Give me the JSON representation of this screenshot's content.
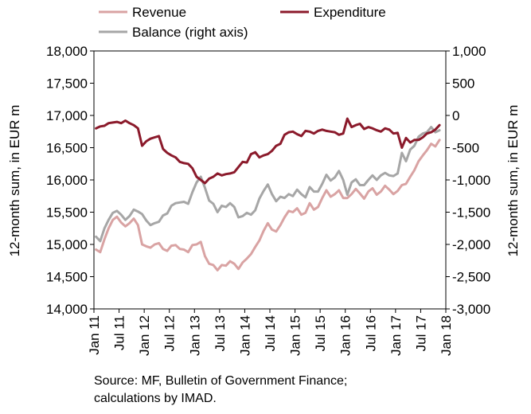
{
  "chart_data": {
    "type": "line",
    "x": [
      "2011-01",
      "2011-02",
      "2011-03",
      "2011-04",
      "2011-05",
      "2011-06",
      "2011-07",
      "2011-08",
      "2011-09",
      "2011-10",
      "2011-11",
      "2011-12",
      "2012-01",
      "2012-02",
      "2012-03",
      "2012-04",
      "2012-05",
      "2012-06",
      "2012-07",
      "2012-08",
      "2012-09",
      "2012-10",
      "2012-11",
      "2012-12",
      "2013-01",
      "2013-02",
      "2013-03",
      "2013-04",
      "2013-05",
      "2013-06",
      "2013-07",
      "2013-08",
      "2013-09",
      "2013-10",
      "2013-11",
      "2013-12",
      "2014-01",
      "2014-02",
      "2014-03",
      "2014-04",
      "2014-05",
      "2014-06",
      "2014-07",
      "2014-08",
      "2014-09",
      "2014-10",
      "2014-11",
      "2014-12",
      "2015-01",
      "2015-02",
      "2015-03",
      "2015-04",
      "2015-05",
      "2015-06",
      "2015-07",
      "2015-08",
      "2015-09",
      "2015-10",
      "2015-11",
      "2015-12",
      "2016-01",
      "2016-02",
      "2016-03",
      "2016-04",
      "2016-05",
      "2016-06",
      "2016-07",
      "2016-08",
      "2016-09",
      "2016-10",
      "2016-11",
      "2016-12",
      "2017-01",
      "2017-02",
      "2017-03",
      "2017-04",
      "2017-05",
      "2017-06",
      "2017-07",
      "2017-08",
      "2017-09",
      "2017-10",
      "2017-11"
    ],
    "series": [
      {
        "name": "Revenue",
        "axis": "left",
        "color": "#d9a3a3",
        "values": [
          14920,
          14880,
          15080,
          15250,
          15380,
          15430,
          15340,
          15280,
          15330,
          15400,
          15300,
          15000,
          14970,
          14950,
          15000,
          15020,
          14930,
          14900,
          14980,
          14990,
          14930,
          14920,
          14880,
          14990,
          15000,
          15040,
          14820,
          14700,
          14680,
          14600,
          14680,
          14670,
          14740,
          14700,
          14620,
          14720,
          14780,
          14850,
          14960,
          15060,
          15210,
          15330,
          15230,
          15200,
          15300,
          15420,
          15520,
          15500,
          15560,
          15460,
          15490,
          15640,
          15540,
          15580,
          15720,
          15840,
          15740,
          15780,
          15840,
          15720,
          15720,
          15780,
          15860,
          15790,
          15710,
          15820,
          15870,
          15770,
          15820,
          15910,
          15850,
          15780,
          15830,
          15920,
          15940,
          16050,
          16150,
          16290,
          16380,
          16460,
          16560,
          16520,
          16620
        ]
      },
      {
        "name": "Expenditure",
        "axis": "left",
        "color": "#8b1a2b",
        "values": [
          16800,
          16830,
          16840,
          16880,
          16890,
          16900,
          16880,
          16920,
          16880,
          16850,
          16800,
          16530,
          16600,
          16640,
          16660,
          16680,
          16480,
          16420,
          16380,
          16350,
          16280,
          16260,
          16250,
          16180,
          16050,
          16000,
          15950,
          16020,
          16050,
          16100,
          16070,
          16090,
          16100,
          16120,
          16200,
          16280,
          16270,
          16400,
          16430,
          16350,
          16380,
          16400,
          16450,
          16530,
          16560,
          16700,
          16740,
          16750,
          16710,
          16680,
          16760,
          16750,
          16720,
          16760,
          16780,
          16760,
          16750,
          16740,
          16700,
          16720,
          16950,
          16820,
          16850,
          16870,
          16790,
          16820,
          16800,
          16770,
          16750,
          16800,
          16780,
          16720,
          16730,
          16500,
          16650,
          16580,
          16620,
          16620,
          16660,
          16720,
          16740,
          16780,
          16850
        ]
      },
      {
        "name": "Balance (right axis)",
        "axis": "right",
        "color": "#a6a6a6",
        "values": [
          -1880,
          -1950,
          -1750,
          -1620,
          -1510,
          -1480,
          -1540,
          -1620,
          -1560,
          -1460,
          -1490,
          -1530,
          -1630,
          -1700,
          -1670,
          -1650,
          -1550,
          -1520,
          -1400,
          -1360,
          -1350,
          -1340,
          -1370,
          -1190,
          -1040,
          -950,
          -1120,
          -1320,
          -1370,
          -1500,
          -1400,
          -1420,
          -1360,
          -1420,
          -1580,
          -1560,
          -1510,
          -1540,
          -1470,
          -1290,
          -1170,
          -1070,
          -1220,
          -1330,
          -1260,
          -1280,
          -1220,
          -1250,
          -1150,
          -1220,
          -1270,
          -1110,
          -1180,
          -1180,
          -1060,
          -920,
          -1010,
          -960,
          -860,
          -1000,
          -1230,
          -1040,
          -990,
          -1080,
          -1080,
          -1000,
          -930,
          -1000,
          -930,
          -890,
          -930,
          -940,
          -900,
          -580,
          -710,
          -530,
          -470,
          -330,
          -280,
          -260,
          -180,
          -260,
          -230
        ]
      }
    ],
    "left_axis": {
      "min": 14000,
      "max": 18000,
      "step": 500,
      "tick_labels": [
        "14,000",
        "14,500",
        "15,000",
        "15,500",
        "16,000",
        "16,500",
        "17,000",
        "17,500",
        "18,000"
      ],
      "label": "12-month sum, in EUR m"
    },
    "right_axis": {
      "min": -3000,
      "max": 1000,
      "step": 500,
      "tick_labels": [
        "-3,000",
        "-2,500",
        "-2,000",
        "-1,500",
        "-1,000",
        "-500",
        "0",
        "500",
        "1,000"
      ],
      "label": "12-month sum, in EUR m"
    },
    "x_tick_labels": [
      "Jan 11",
      "Jul 11",
      "Jan 12",
      "Jul 12",
      "Jan 13",
      "Jul 13",
      "Jan 14",
      "Jul 14",
      "Jan 15",
      "Jul 15",
      "Jan 16",
      "Jul 16",
      "Jan 17",
      "Jul 17",
      "Jan 18"
    ],
    "x_tick_months": [
      0,
      6,
      12,
      18,
      24,
      30,
      36,
      42,
      48,
      54,
      60,
      66,
      72,
      78,
      84
    ],
    "grid": false,
    "legend_placement": "top"
  },
  "source": {
    "line1": "Source: MF, Bulletin of Government Finance;",
    "line2": "calculations  by IMAD."
  }
}
